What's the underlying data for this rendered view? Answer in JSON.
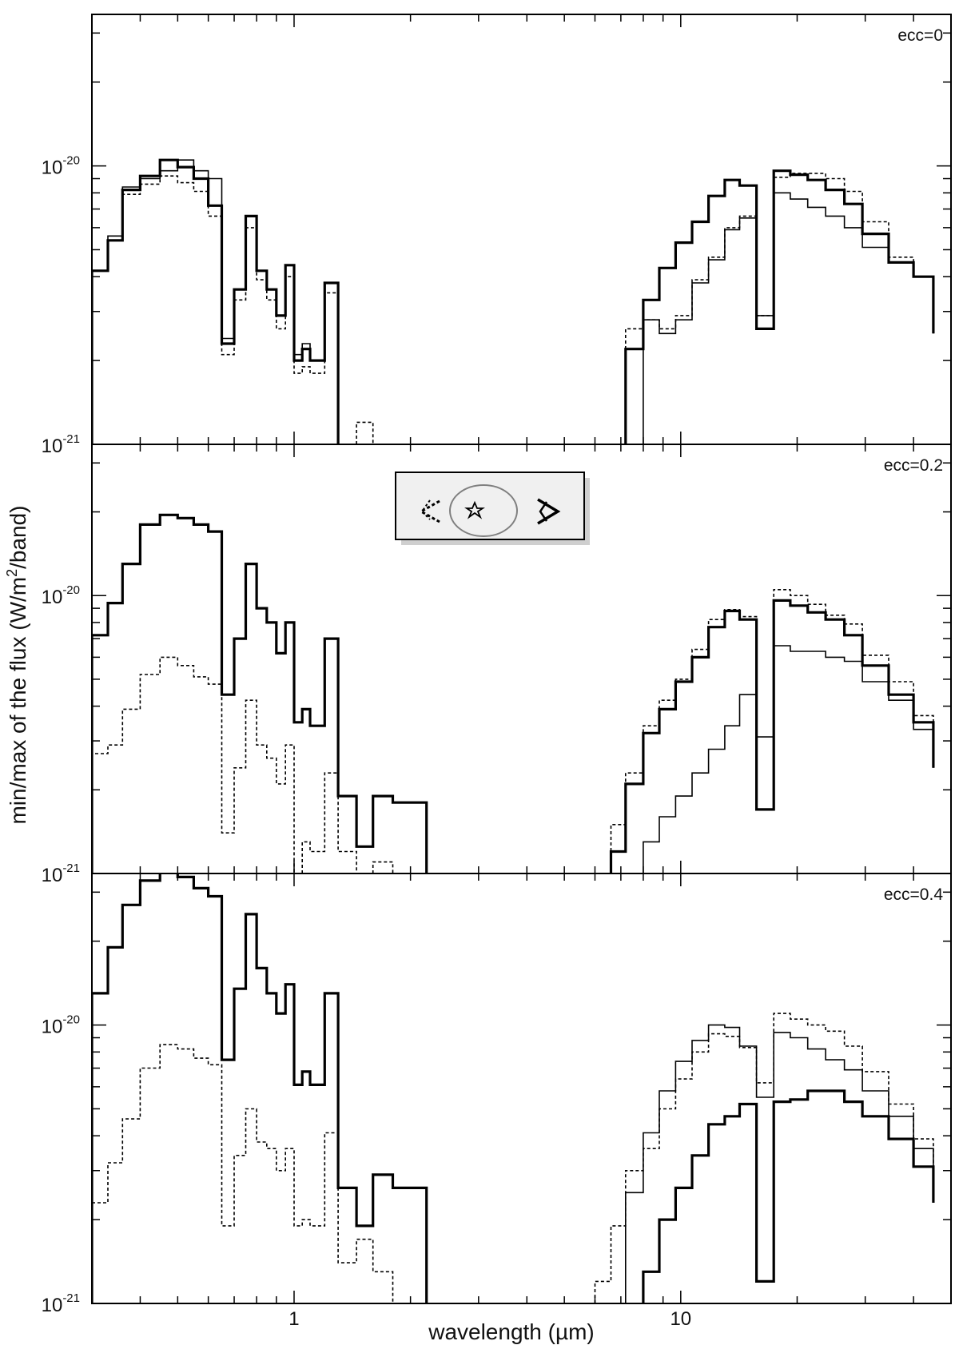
{
  "chart_data": {
    "type": "line",
    "style": "step",
    "xlabel": "wavelength (µm)",
    "ylabel": "min/max of the flux (W/m2/band)",
    "ylabel_parts": [
      "min/max of the flux (W/m",
      "2",
      "/band)"
    ],
    "xscale": "log",
    "yscale": "log",
    "xlim": [
      0.3,
      50
    ],
    "ylim": [
      1e-21,
      3.5e-20
    ],
    "x_tick_labels": [
      "1",
      "10"
    ],
    "y_tick_labels": [
      {
        "base": "10",
        "exp": "-20"
      },
      {
        "base": "10",
        "exp": "-21"
      }
    ],
    "legend": {
      "placement": "center (middle panel)",
      "icons": [
        "observer-left-dashed-icon",
        "star-icon",
        "observer-right-solid-icon"
      ],
      "orbit_color": "#808080"
    },
    "colors": {
      "line": "#000000",
      "background": "#ffffff",
      "legend_bg": "#f0f0f0"
    },
    "bin_edges": [
      0.3,
      0.33,
      0.36,
      0.4,
      0.45,
      0.5,
      0.55,
      0.6,
      0.65,
      0.7,
      0.75,
      0.8,
      0.85,
      0.9,
      0.95,
      1.0,
      1.05,
      1.1,
      1.2,
      1.3,
      1.45,
      1.6,
      1.8,
      2.2,
      2.6,
      3.0,
      3.6,
      4.5,
      5.4,
      6.0,
      6.6,
      7.2,
      8.0,
      8.8,
      9.7,
      10.7,
      11.8,
      13.0,
      14.2,
      15.7,
      17.4,
      19.2,
      21.3,
      23.7,
      26.5,
      29.5,
      34.5,
      40.0,
      45.0
    ],
    "panels": [
      {
        "label": "ecc=0",
        "series": [
          {
            "style": "solid-thick",
            "values": [
              4.2e-21,
              5.4e-21,
              8.2e-21,
              9.2e-21,
              1.05e-20,
              9.9e-21,
              9e-21,
              7.2e-21,
              2.3e-21,
              3.6e-21,
              6.6e-21,
              4.2e-21,
              3.6e-21,
              2.9e-21,
              4.4e-21,
              2e-21,
              2.2e-21,
              2e-21,
              3.8e-21,
              null,
              null,
              null,
              null,
              null,
              null,
              null,
              null,
              null,
              null,
              null,
              null,
              2.2e-21,
              3.3e-21,
              4.3e-21,
              5.3e-21,
              6.3e-21,
              7.8e-21,
              8.9e-21,
              8.5e-21,
              2.6e-21,
              9.6e-21,
              9.3e-21,
              8.9e-21,
              8.2e-21,
              7.3e-21,
              5.7e-21,
              4.5e-21,
              4e-21,
              2.5e-21
            ]
          },
          {
            "style": "solid-thin",
            "values": [
              4.2e-21,
              5.6e-21,
              8.4e-21,
              9e-21,
              9.6e-21,
              1.05e-20,
              9.6e-21,
              9e-21,
              2.4e-21,
              3.6e-21,
              6.6e-21,
              4.2e-21,
              3.6e-21,
              2.9e-21,
              4.4e-21,
              2.1e-21,
              2.3e-21,
              2e-21,
              3.8e-21,
              null,
              null,
              null,
              null,
              null,
              null,
              null,
              null,
              null,
              null,
              null,
              null,
              null,
              2.8e-21,
              2.5e-21,
              2.8e-21,
              3.8e-21,
              4.6e-21,
              5.9e-21,
              6.5e-21,
              2.9e-21,
              8e-21,
              7.6e-21,
              7.1e-21,
              6.6e-21,
              6e-21,
              5.1e-21,
              4.5e-21,
              4e-21,
              2.5e-21
            ]
          },
          {
            "style": "dashed-thin",
            "values": [
              4.2e-21,
              5.4e-21,
              7.9e-21,
              8.6e-21,
              9.2e-21,
              8.7e-21,
              8.1e-21,
              6.6e-21,
              2.1e-21,
              3.3e-21,
              6e-21,
              3.9e-21,
              3.3e-21,
              2.6e-21,
              4e-21,
              1.8e-21,
              1.9e-21,
              1.8e-21,
              3.5e-21,
              null,
              1.2e-21,
              1e-21,
              null,
              null,
              null,
              null,
              null,
              null,
              null,
              null,
              null,
              2.6e-21,
              2.8e-21,
              2.6e-21,
              2.9e-21,
              3.9e-21,
              4.7e-21,
              6e-21,
              6.6e-21,
              2.9e-21,
              9.1e-21,
              9.4e-21,
              9.4e-21,
              9e-21,
              8.1e-21,
              6.3e-21,
              4.7e-21,
              4e-21,
              2.6e-21
            ]
          }
        ]
      },
      {
        "label": "ecc=0.2",
        "series": [
          {
            "style": "solid-thick",
            "values": [
              7.2e-21,
              9.4e-21,
              1.3e-20,
              1.8e-20,
              1.95e-20,
              1.9e-20,
              1.8e-20,
              1.7e-20,
              4.4e-21,
              7e-21,
              1.3e-20,
              9e-21,
              8e-21,
              6.2e-21,
              8e-21,
              3.5e-21,
              3.9e-21,
              3.4e-21,
              7e-21,
              1.9e-21,
              1.25e-21,
              1.9e-21,
              1.8e-21,
              null,
              null,
              null,
              null,
              null,
              null,
              null,
              1.2e-21,
              2.1e-21,
              3.2e-21,
              3.9e-21,
              4.9e-21,
              6e-21,
              7.7e-21,
              8.8e-21,
              8.2e-21,
              1.7e-21,
              9.6e-21,
              9.2e-21,
              8.7e-21,
              8.2e-21,
              7.2e-21,
              5.6e-21,
              4.4e-21,
              3.5e-21,
              2.4e-21
            ]
          },
          {
            "style": "solid-thin",
            "values": [
              null,
              null,
              null,
              null,
              null,
              null,
              null,
              null,
              null,
              null,
              null,
              null,
              null,
              null,
              null,
              null,
              null,
              null,
              null,
              null,
              null,
              null,
              null,
              null,
              null,
              null,
              null,
              null,
              null,
              null,
              null,
              1e-21,
              1.3e-21,
              1.6e-21,
              1.9e-21,
              2.3e-21,
              2.8e-21,
              3.4e-21,
              4.4e-21,
              3.1e-21,
              6.6e-21,
              6.3e-21,
              6.3e-21,
              6e-21,
              5.8e-21,
              4.9e-21,
              4.2e-21,
              3.3e-21,
              2.4e-21
            ]
          },
          {
            "style": "dashed-thin",
            "values": [
              2.7e-21,
              2.9e-21,
              3.9e-21,
              5.2e-21,
              6e-21,
              5.6e-21,
              5.1e-21,
              4.8e-21,
              1.4e-21,
              2.4e-21,
              4.2e-21,
              2.9e-21,
              2.6e-21,
              2.1e-21,
              2.9e-21,
              1e-21,
              1.3e-21,
              1.2e-21,
              2.3e-21,
              1.2e-21,
              1e-21,
              1.1e-21,
              null,
              null,
              null,
              null,
              null,
              null,
              null,
              null,
              1.5e-21,
              2.3e-21,
              3.4e-21,
              4.2e-21,
              5e-21,
              6.4e-21,
              8.2e-21,
              8.9e-21,
              8.4e-21,
              1.7e-21,
              1.05e-20,
              1e-20,
              9.3e-21,
              8.5e-21,
              7.9e-21,
              6.1e-21,
              4.9e-21,
              3.7e-21,
              2.4e-21
            ]
          }
        ]
      },
      {
        "label": "ecc=0.4",
        "series": [
          {
            "style": "solid-thick",
            "values": [
              1.3e-20,
              1.9e-20,
              2.7e-20,
              3.3e-20,
              3.6e-20,
              3.4e-20,
              3.1e-20,
              2.9e-20,
              7.5e-21,
              1.35e-20,
              2.5e-20,
              1.6e-20,
              1.3e-20,
              1.1e-20,
              1.4e-20,
              6.1e-21,
              6.8e-21,
              6.1e-21,
              1.3e-20,
              2.6e-21,
              1.9e-21,
              2.9e-21,
              2.6e-21,
              null,
              null,
              null,
              null,
              null,
              null,
              null,
              null,
              1e-21,
              1.3e-21,
              2e-21,
              2.6e-21,
              3.4e-21,
              4.4e-21,
              4.7e-21,
              5.2e-21,
              1.2e-21,
              5.3e-21,
              5.4e-21,
              5.8e-21,
              5.8e-21,
              5.3e-21,
              4.7e-21,
              3.9e-21,
              3.1e-21,
              2.3e-21
            ]
          },
          {
            "style": "solid-thin",
            "values": [
              null,
              null,
              null,
              null,
              null,
              null,
              null,
              null,
              null,
              null,
              null,
              null,
              null,
              null,
              null,
              null,
              null,
              null,
              null,
              null,
              null,
              null,
              null,
              null,
              null,
              null,
              null,
              null,
              null,
              null,
              1e-21,
              2.5e-21,
              4.1e-21,
              5.8e-21,
              7.4e-21,
              8.8e-21,
              1e-20,
              9.8e-21,
              8.4e-21,
              5.5e-21,
              9.4e-21,
              9e-21,
              8.2e-21,
              7.5e-21,
              6.9e-21,
              5.8e-21,
              4.7e-21,
              3.6e-21,
              2.5e-21
            ]
          },
          {
            "style": "dashed-thin",
            "values": [
              2.3e-21,
              3.2e-21,
              4.6e-21,
              7e-21,
              8.5e-21,
              8.2e-21,
              7.6e-21,
              7.2e-21,
              1.9e-21,
              3.4e-21,
              5e-21,
              3.8e-21,
              3.6e-21,
              3e-21,
              3.6e-21,
              1.9e-21,
              2e-21,
              1.9e-21,
              4.1e-21,
              1.4e-21,
              1.7e-21,
              1.3e-21,
              null,
              null,
              1e-21,
              null,
              null,
              null,
              null,
              1.2e-21,
              1.9e-21,
              3e-21,
              3.6e-21,
              5e-21,
              6.4e-21,
              8e-21,
              9.3e-21,
              9.1e-21,
              8.3e-21,
              6.2e-21,
              1.1e-20,
              1.05e-20,
              1e-20,
              9.5e-21,
              8.4e-21,
              6.8e-21,
              5.2e-21,
              3.9e-21,
              2.4e-21
            ]
          }
        ]
      }
    ]
  }
}
